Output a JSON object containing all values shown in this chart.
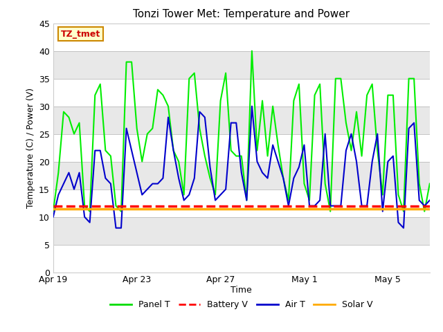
{
  "title": "Tonzi Tower Met: Temperature and Power",
  "ylabel": "Temperature (C) / Power (V)",
  "xlabel": "Time",
  "ylim": [
    0,
    45
  ],
  "yticks": [
    0,
    5,
    10,
    15,
    20,
    25,
    30,
    35,
    40,
    45
  ],
  "xlim_days": [
    0,
    18
  ],
  "xtick_positions": [
    0,
    4,
    8,
    12,
    16
  ],
  "xtick_labels": [
    "Apr 19",
    "Apr 23",
    "Apr 27",
    "May 1",
    "May 5"
  ],
  "fig_bg_color": "#ffffff",
  "plot_bg_color": "#ffffff",
  "band_colors": [
    "#ffffff",
    "#e8e8e8"
  ],
  "label_box_text": "TZ_tmet",
  "label_box_facecolor": "#ffffcc",
  "label_box_edgecolor": "#cc8800",
  "label_box_textcolor": "#cc0000",
  "legend_entries": [
    "Panel T",
    "Battery V",
    "Air T",
    "Solar V"
  ],
  "legend_colors": [
    "#00dd00",
    "#ff0000",
    "#0000cc",
    "#ffaa00"
  ],
  "legend_linestyles": [
    "-",
    "--",
    "-",
    "-"
  ],
  "panel_t_color": "#00ee00",
  "panel_t_lw": 1.5,
  "air_t_color": "#0000cc",
  "air_t_lw": 1.5,
  "battery_v_color": "#ff0000",
  "battery_v_lw": 2.5,
  "battery_v_linestyle": "--",
  "battery_v_y": 12.0,
  "solar_v_color": "#ffaa00",
  "solar_v_lw": 2.5,
  "solar_v_y": 11.5,
  "panel_t_x": [
    0.0,
    0.25,
    0.5,
    0.75,
    1.0,
    1.25,
    1.5,
    1.75,
    2.0,
    2.25,
    2.5,
    2.75,
    3.0,
    3.25,
    3.5,
    3.75,
    4.0,
    4.25,
    4.5,
    4.75,
    5.0,
    5.25,
    5.5,
    5.75,
    6.0,
    6.25,
    6.5,
    6.75,
    7.0,
    7.25,
    7.5,
    7.75,
    8.0,
    8.25,
    8.5,
    8.75,
    9.0,
    9.25,
    9.5,
    9.75,
    10.0,
    10.25,
    10.5,
    10.75,
    11.0,
    11.25,
    11.5,
    11.75,
    12.0,
    12.25,
    12.5,
    12.75,
    13.0,
    13.25,
    13.5,
    13.75,
    14.0,
    14.25,
    14.5,
    14.75,
    15.0,
    15.25,
    15.5,
    15.75,
    16.0,
    16.25,
    16.5,
    16.75,
    17.0,
    17.25,
    17.5,
    17.75,
    18.0
  ],
  "panel_t_y": [
    11,
    18,
    29,
    28,
    25,
    27,
    12,
    11,
    32,
    34,
    22,
    21,
    12,
    11,
    38,
    38,
    26,
    20,
    25,
    26,
    33,
    32,
    30,
    22,
    20,
    14,
    35,
    36,
    26,
    21,
    17,
    14,
    31,
    36,
    22,
    21,
    21,
    13,
    40,
    22,
    31,
    21,
    30,
    23,
    17,
    13,
    31,
    34,
    16,
    13,
    32,
    34,
    16,
    11,
    35,
    35,
    27,
    22,
    29,
    21,
    32,
    34,
    22,
    14,
    32,
    32,
    14,
    11,
    35,
    35,
    16,
    11,
    16
  ],
  "air_t_x": [
    0.0,
    0.25,
    0.5,
    0.75,
    1.0,
    1.25,
    1.5,
    1.75,
    2.0,
    2.25,
    2.5,
    2.75,
    3.0,
    3.25,
    3.5,
    3.75,
    4.0,
    4.25,
    4.5,
    4.75,
    5.0,
    5.25,
    5.5,
    5.75,
    6.0,
    6.25,
    6.5,
    6.75,
    7.0,
    7.25,
    7.5,
    7.75,
    8.0,
    8.25,
    8.5,
    8.75,
    9.0,
    9.25,
    9.5,
    9.75,
    10.0,
    10.25,
    10.5,
    10.75,
    11.0,
    11.25,
    11.5,
    11.75,
    12.0,
    12.25,
    12.5,
    12.75,
    13.0,
    13.25,
    13.5,
    13.75,
    14.0,
    14.25,
    14.5,
    14.75,
    15.0,
    15.25,
    15.5,
    15.75,
    16.0,
    16.25,
    16.5,
    16.75,
    17.0,
    17.25,
    17.5,
    17.75,
    18.0
  ],
  "air_t_y": [
    10,
    14,
    16,
    18,
    15,
    18,
    10,
    9,
    22,
    22,
    17,
    16,
    8,
    8,
    26,
    22,
    18,
    14,
    15,
    16,
    16,
    17,
    28,
    22,
    17,
    13,
    14,
    17,
    29,
    28,
    19,
    13,
    14,
    15,
    27,
    27,
    18,
    13,
    30,
    20,
    18,
    17,
    23,
    20,
    17,
    12,
    17,
    19,
    23,
    12,
    12,
    13,
    25,
    12,
    12,
    12,
    22,
    25,
    20,
    12,
    12,
    20,
    25,
    11,
    20,
    21,
    9,
    8,
    26,
    27,
    13,
    12,
    13
  ]
}
